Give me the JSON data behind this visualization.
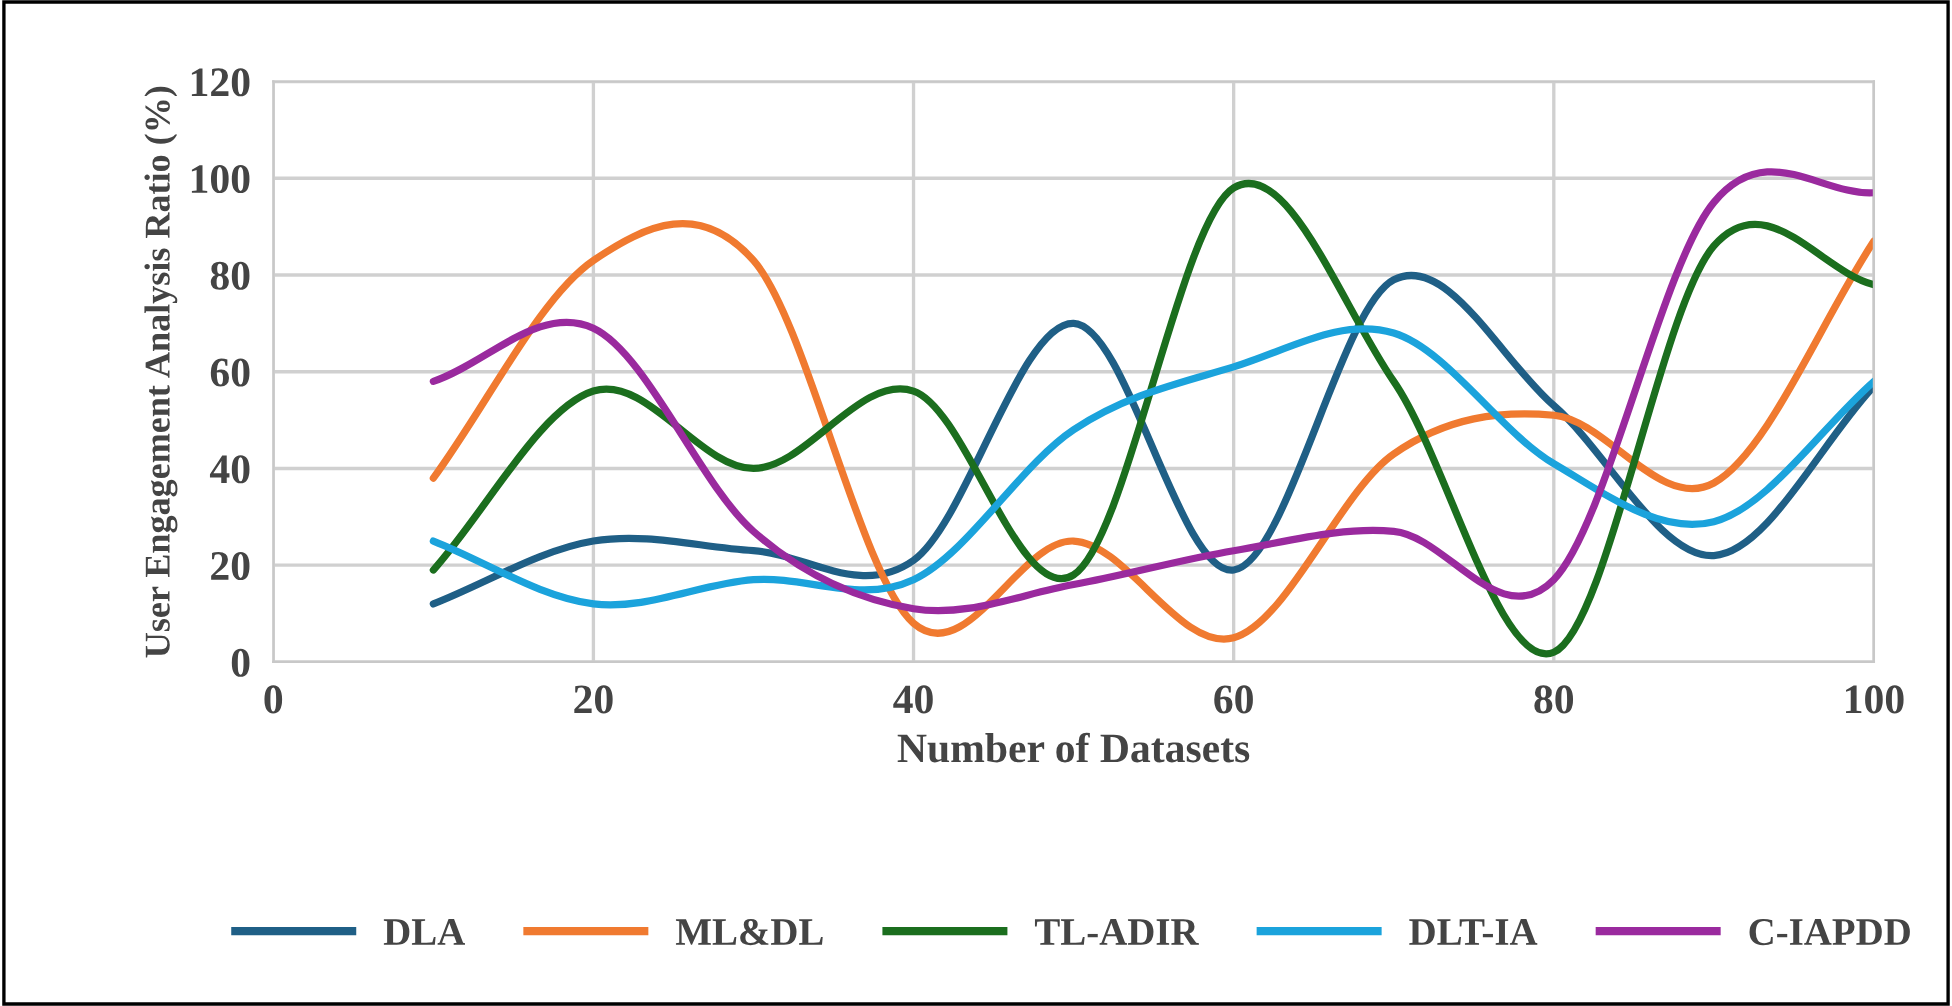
{
  "chart_data": {
    "type": "line",
    "xlabel": "Number of Datasets",
    "ylabel": "User Engagement Analysis Ratio (%)",
    "x": [
      10,
      20,
      30,
      40,
      50,
      60,
      70,
      80,
      90,
      100
    ],
    "xlim": [
      0,
      100
    ],
    "xticks": [
      0,
      20,
      40,
      60,
      80,
      100
    ],
    "ylim": [
      0,
      120
    ],
    "yticks": [
      0,
      20,
      40,
      60,
      80,
      100,
      120
    ],
    "grid": true,
    "legend": "bottom",
    "line_style": "solid",
    "series": [
      {
        "name": "DLA",
        "color": "#1f5f86",
        "values": [
          12,
          25,
          23,
          21,
          70,
          19,
          79,
          53,
          22,
          57
        ]
      },
      {
        "name": "ML&DL",
        "color": "#f07a30",
        "values": [
          38,
          83,
          83,
          8,
          25,
          5,
          43,
          51,
          37,
          87
        ]
      },
      {
        "name": "TL-ADIR",
        "color": "#1b6e1e",
        "values": [
          19,
          56,
          40,
          56,
          18,
          98,
          58,
          2,
          86,
          78
        ]
      },
      {
        "name": "DLT-IA",
        "color": "#1ba3dc",
        "values": [
          25,
          12,
          17,
          17,
          48,
          61,
          68,
          41,
          29,
          58
        ]
      },
      {
        "name": "C-IAPDD",
        "color": "#9a2a9e",
        "values": [
          58,
          69,
          27,
          11,
          16,
          23,
          27,
          17,
          95,
          97
        ]
      }
    ]
  }
}
